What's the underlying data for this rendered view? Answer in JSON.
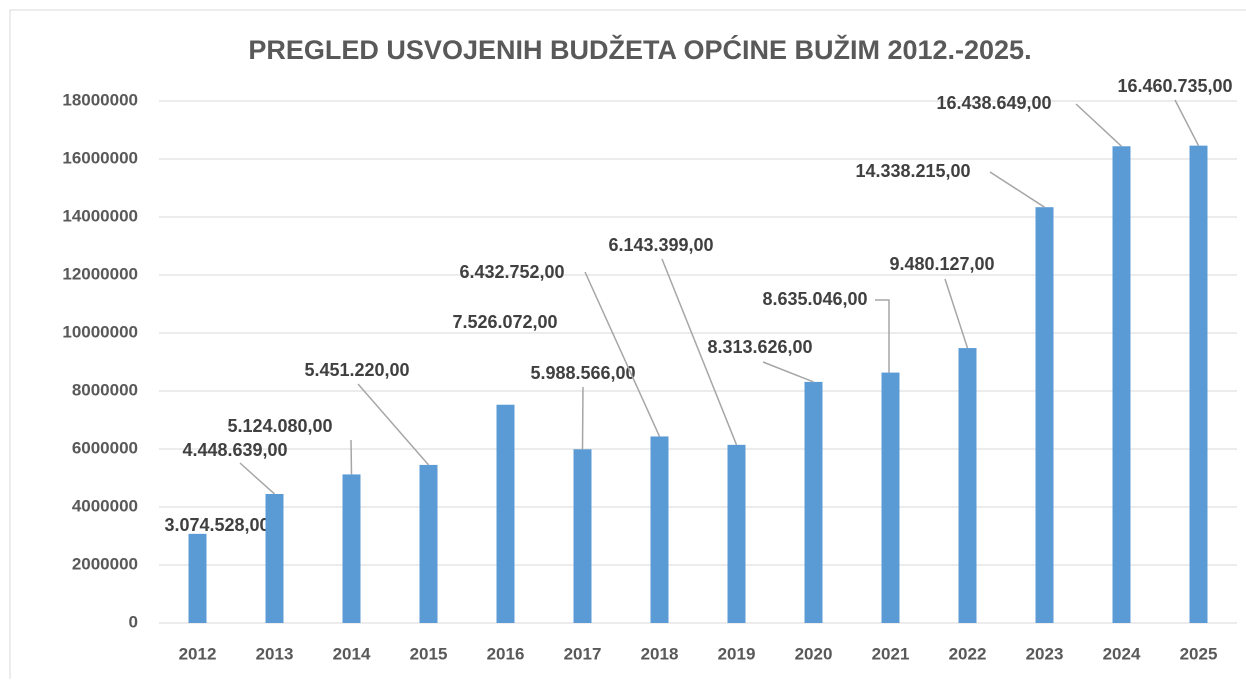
{
  "chart_data": {
    "type": "bar",
    "title": "PREGLED USVOJENIH BUDŽETA OPĆINE BUŽIM 2012.-2025.",
    "categories": [
      "2012",
      "2013",
      "2014",
      "2015",
      "2016",
      "2017",
      "2018",
      "2019",
      "2020",
      "2021",
      "2022",
      "2023",
      "2024",
      "2025"
    ],
    "values": [
      3074528,
      4448639,
      5124080,
      5451220,
      7526072,
      5988566,
      6432752,
      6143399,
      8313626,
      8635046,
      9480127,
      14338215,
      16438649,
      16460735
    ],
    "value_labels": [
      "3.074.528,00",
      "4.448.639,00",
      "5.124.080,00",
      "5.451.220,00",
      "7.526.072,00",
      "5.988.566,00",
      "6.432.752,00",
      "6.143.399,00",
      "8.313.626,00",
      "8.635.046,00",
      "9.480.127,00",
      "14.338.215,00",
      "16.438.649,00",
      "16.460.735,00"
    ],
    "color": "#5b9bd5",
    "ylim": [
      0,
      18000000
    ],
    "yticks": [
      0,
      2000000,
      4000000,
      6000000,
      8000000,
      10000000,
      12000000,
      14000000,
      16000000,
      18000000
    ],
    "grid": true
  }
}
